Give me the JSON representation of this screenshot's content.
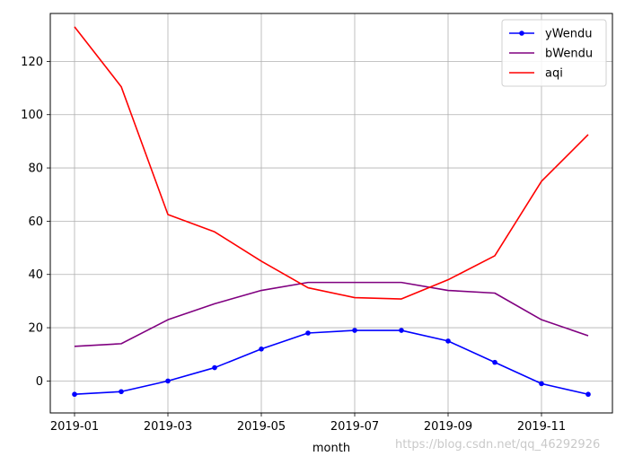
{
  "chart_data": {
    "type": "line",
    "title": "",
    "xlabel": "month",
    "ylabel": "",
    "x": [
      "2019-01",
      "2019-02",
      "2019-03",
      "2019-04",
      "2019-05",
      "2019-06",
      "2019-07",
      "2019-08",
      "2019-09",
      "2019-10",
      "2019-11",
      "2019-12"
    ],
    "xticks": [
      "2019-01",
      "2019-03",
      "2019-05",
      "2019-07",
      "2019-09",
      "2019-11"
    ],
    "yticks": [
      0,
      20,
      40,
      60,
      80,
      100,
      120
    ],
    "ylim": [
      -12,
      138
    ],
    "grid": true,
    "legend_position": "top-right",
    "series": [
      {
        "name": "yWendu",
        "color": "#0000ff",
        "marker": true,
        "values": [
          -5,
          -4,
          0,
          5,
          12,
          18,
          19,
          19,
          15,
          7,
          -1,
          -5
        ]
      },
      {
        "name": "bWendu",
        "color": "#800080",
        "marker": false,
        "values": [
          13,
          14,
          23,
          29,
          34,
          37,
          37,
          37,
          34,
          33,
          23,
          17
        ]
      },
      {
        "name": "aqi",
        "color": "#ff0000",
        "marker": false,
        "values": [
          133,
          110.5,
          62.5,
          56,
          45,
          35,
          31.3,
          30.8,
          38,
          47,
          75,
          92.5
        ]
      }
    ]
  },
  "watermark": "https://blog.csdn.net/qq_46292926"
}
